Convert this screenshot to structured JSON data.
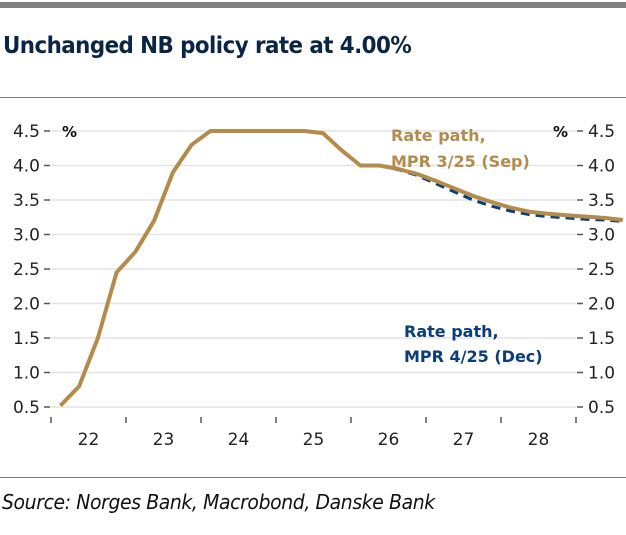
{
  "header": {
    "title": "Unchanged NB policy rate at 4.00%"
  },
  "footer": {
    "source": "Source: Norges Bank, Macrobond, Danske Bank"
  },
  "chart_data": {
    "type": "line",
    "title": "Unchanged NB policy rate at 4.00%",
    "xlabel": "",
    "ylabel": "%",
    "ylabel_right": "%",
    "ylim": [
      0.5,
      4.5
    ],
    "yticks": [
      0.5,
      1.0,
      1.5,
      2.0,
      2.5,
      3.0,
      3.5,
      4.0,
      4.5
    ],
    "ytick_labels": [
      "0.5",
      "1.0",
      "1.5",
      "2.0",
      "2.5",
      "3.0",
      "3.5",
      "4.0",
      "4.5"
    ],
    "xlim": [
      2021.0,
      2029.0
    ],
    "xtick_positions": [
      2021,
      2022,
      2023,
      2024,
      2025,
      2026,
      2027,
      2028,
      2029
    ],
    "xtick_labels": [
      {
        "label": "22",
        "x": 2021.5
      },
      {
        "label": "23",
        "x": 2022.5
      },
      {
        "label": "24",
        "x": 2023.5
      },
      {
        "label": "25",
        "x": 2024.5
      },
      {
        "label": "26",
        "x": 2025.5
      },
      {
        "label": "27",
        "x": 2026.5
      },
      {
        "label": "28",
        "x": 2027.5
      }
    ],
    "grid": true,
    "legend": "inline annotations",
    "series": [
      {
        "name": "Rate path, MPR 3/25 (Sep)",
        "color": "#b38b4a",
        "style": "solid",
        "x": [
          2021.125,
          2021.375,
          2021.625,
          2021.875,
          2022.125,
          2022.375,
          2022.625,
          2022.875,
          2023.125,
          2023.375,
          2023.625,
          2023.875,
          2024.125,
          2024.375,
          2024.625,
          2024.875,
          2025.125,
          2025.375,
          2025.625,
          2025.875,
          2026.125,
          2026.375,
          2026.625,
          2026.875,
          2027.125,
          2027.375,
          2027.625,
          2027.875,
          2028.125,
          2028.375,
          2028.625
        ],
        "values": [
          0.52,
          0.8,
          1.5,
          2.45,
          2.75,
          3.2,
          3.9,
          4.3,
          4.5,
          4.5,
          4.5,
          4.5,
          4.5,
          4.5,
          4.47,
          4.22,
          4.0,
          4.0,
          3.95,
          3.88,
          3.78,
          3.67,
          3.56,
          3.47,
          3.39,
          3.33,
          3.3,
          3.28,
          3.26,
          3.24,
          3.21
        ]
      },
      {
        "name": "Rate path, MPR 4/25 (Dec)",
        "color": "#0a3d7a",
        "style": "dashed",
        "x": [
          2025.375,
          2025.625,
          2025.875,
          2026.125,
          2026.375,
          2026.625,
          2026.875,
          2027.125,
          2027.375,
          2027.625,
          2027.875,
          2028.125,
          2028.375,
          2028.625
        ],
        "values": [
          4.0,
          3.94,
          3.86,
          3.74,
          3.62,
          3.5,
          3.41,
          3.34,
          3.29,
          3.26,
          3.24,
          3.22,
          3.21,
          3.19
        ]
      }
    ],
    "annotations": [
      {
        "text_lines": [
          "Rate path,",
          "MPR 3/25 (Sep)"
        ],
        "color": "#b38b4a",
        "series": "Rate path, MPR 3/25 (Sep)"
      },
      {
        "text_lines": [
          "Rate path,",
          "MPR 4/25 (Dec)"
        ],
        "color": "#0a3d7a",
        "series": "Rate path, MPR 4/25 (Dec)"
      }
    ]
  }
}
